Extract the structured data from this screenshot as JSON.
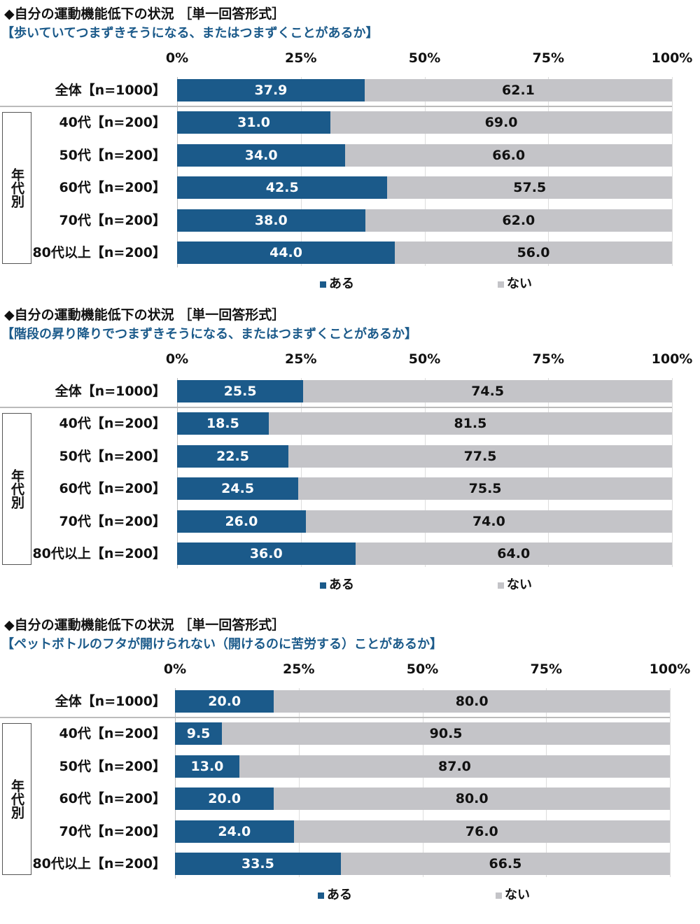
{
  "colors": {
    "ある": "#1b5a8a",
    "ない": "#c4c4c8"
  },
  "chart_data": [
    {
      "type": "bar",
      "orientation": "horizontal-stacked-100",
      "title": "◆自分の運動機能低下の状況 ［単一回答形式］",
      "subtitle": "【歩いていてつまずきそうになる、またはつまずくことがあるか】",
      "xlim": [
        0,
        100
      ],
      "ticks": [
        "0%",
        "25%",
        "50%",
        "75%",
        "100%"
      ],
      "group_label": "年代別",
      "categories": [
        "全体【n=1000】",
        "40代【n=200】",
        "50代【n=200】",
        "60代【n=200】",
        "70代【n=200】",
        "80代以上【n=200】"
      ],
      "series": [
        {
          "name": "ある",
          "values": [
            37.9,
            31.0,
            34.0,
            42.5,
            38.0,
            44.0
          ]
        },
        {
          "name": "ない",
          "values": [
            62.1,
            69.0,
            66.0,
            57.5,
            62.0,
            56.0
          ]
        }
      ],
      "legend": "bottom"
    },
    {
      "type": "bar",
      "orientation": "horizontal-stacked-100",
      "title": "◆自分の運動機能低下の状況 ［単一回答形式］",
      "subtitle": "【階段の昇り降りでつまずきそうになる、またはつまずくことがあるか】",
      "xlim": [
        0,
        100
      ],
      "ticks": [
        "0%",
        "25%",
        "50%",
        "75%",
        "100%"
      ],
      "group_label": "年代別",
      "categories": [
        "全体【n=1000】",
        "40代【n=200】",
        "50代【n=200】",
        "60代【n=200】",
        "70代【n=200】",
        "80代以上【n=200】"
      ],
      "series": [
        {
          "name": "ある",
          "values": [
            25.5,
            18.5,
            22.5,
            24.5,
            26.0,
            36.0
          ]
        },
        {
          "name": "ない",
          "values": [
            74.5,
            81.5,
            77.5,
            75.5,
            74.0,
            64.0
          ]
        }
      ],
      "legend": "bottom"
    },
    {
      "type": "bar",
      "orientation": "horizontal-stacked-100",
      "title": "◆自分の運動機能低下の状況 ［単一回答形式］",
      "subtitle": "【ペットボトルのフタが開けられない（開けるのに苦労する）ことがあるか】",
      "xlim": [
        0,
        100
      ],
      "ticks": [
        "0%",
        "25%",
        "50%",
        "75%",
        "100%"
      ],
      "group_label": "年代別",
      "categories": [
        "全体【n=1000】",
        "40代【n=200】",
        "50代【n=200】",
        "60代【n=200】",
        "70代【n=200】",
        "80代以上【n=200】"
      ],
      "series": [
        {
          "name": "ある",
          "values": [
            20.0,
            9.5,
            13.0,
            20.0,
            24.0,
            33.5
          ]
        },
        {
          "name": "ない",
          "values": [
            80.0,
            90.5,
            87.0,
            80.0,
            76.0,
            66.5
          ]
        }
      ],
      "legend": "bottom"
    }
  ]
}
